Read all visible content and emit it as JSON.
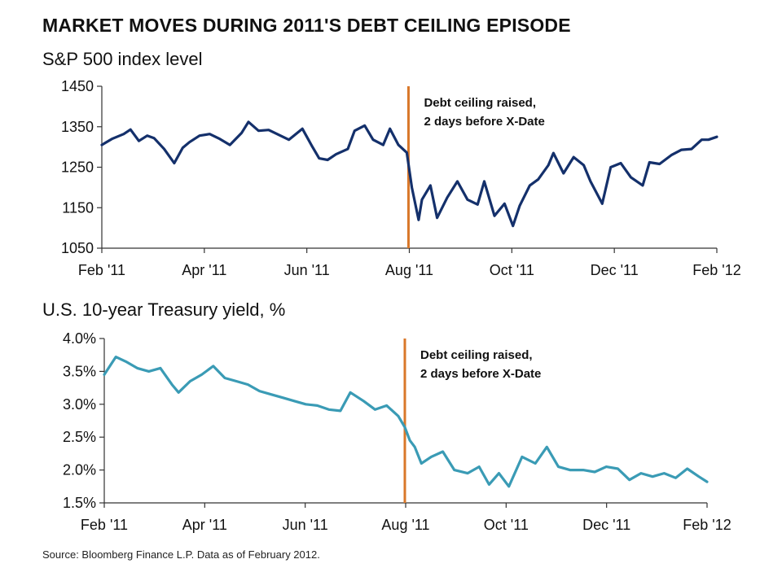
{
  "title": "MARKET MOVES DURING 2011'S DEBT CEILING EPISODE",
  "source": "Source: Bloomberg Finance L.P. Data as of February 2012.",
  "colors": {
    "sp500": "#14306b",
    "treasury": "#3a9bb5",
    "marker": "#d9782a",
    "axis": "#333333"
  },
  "chart_data": [
    {
      "type": "line",
      "title": "S&P 500 index level",
      "x_ticks": [
        "Feb '11",
        "Apr '11",
        "Jun '11",
        "Aug '11",
        "Oct '11",
        "Dec '11",
        "Feb '12"
      ],
      "y_ticks": [
        "1450",
        "1350",
        "1250",
        "1150",
        "1050"
      ],
      "ylim": [
        1050,
        1450
      ],
      "xlim": [
        "2011-02-01",
        "2012-02-01"
      ],
      "grid": false,
      "annotation": {
        "date": "2011-08-02",
        "line1": "Debt ceiling raised,",
        "line2": "2 days before X-Date"
      },
      "series": [
        {
          "x": [
            "2011-02-01",
            "2011-02-07",
            "2011-02-14",
            "2011-02-18",
            "2011-02-23",
            "2011-02-28",
            "2011-03-04",
            "2011-03-10",
            "2011-03-16",
            "2011-03-21",
            "2011-03-25",
            "2011-03-31",
            "2011-04-06",
            "2011-04-12",
            "2011-04-18",
            "2011-04-25",
            "2011-04-29",
            "2011-05-05",
            "2011-05-11",
            "2011-05-17",
            "2011-05-23",
            "2011-05-31",
            "2011-06-06",
            "2011-06-10",
            "2011-06-15",
            "2011-06-20",
            "2011-06-27",
            "2011-07-01",
            "2011-07-07",
            "2011-07-12",
            "2011-07-18",
            "2011-07-22",
            "2011-07-27",
            "2011-08-01",
            "2011-08-04",
            "2011-08-08",
            "2011-08-10",
            "2011-08-15",
            "2011-08-19",
            "2011-08-25",
            "2011-08-31",
            "2011-09-06",
            "2011-09-12",
            "2011-09-16",
            "2011-09-22",
            "2011-09-28",
            "2011-10-03",
            "2011-10-07",
            "2011-10-13",
            "2011-10-18",
            "2011-10-24",
            "2011-10-27",
            "2011-11-02",
            "2011-11-08",
            "2011-11-14",
            "2011-11-18",
            "2011-11-25",
            "2011-11-30",
            "2011-12-06",
            "2011-12-12",
            "2011-12-19",
            "2011-12-23",
            "2011-12-29",
            "2012-01-05",
            "2012-01-11",
            "2012-01-17",
            "2012-01-23",
            "2012-01-27",
            "2012-02-01"
          ],
          "values": [
            1305,
            1320,
            1332,
            1343,
            1315,
            1328,
            1322,
            1295,
            1260,
            1298,
            1312,
            1328,
            1332,
            1320,
            1305,
            1335,
            1362,
            1340,
            1342,
            1330,
            1318,
            1345,
            1300,
            1272,
            1268,
            1282,
            1295,
            1340,
            1353,
            1318,
            1305,
            1345,
            1305,
            1286,
            1200,
            1120,
            1170,
            1205,
            1125,
            1175,
            1215,
            1170,
            1158,
            1215,
            1130,
            1160,
            1105,
            1155,
            1205,
            1220,
            1255,
            1285,
            1235,
            1275,
            1255,
            1215,
            1160,
            1250,
            1260,
            1225,
            1205,
            1262,
            1258,
            1280,
            1293,
            1295,
            1318,
            1318,
            1325
          ]
        }
      ]
    },
    {
      "type": "line",
      "title": "U.S. 10-year Treasury yield, %",
      "x_ticks": [
        "Feb '11",
        "Apr '11",
        "Jun '11",
        "Aug '11",
        "Oct '11",
        "Dec '11",
        "Feb '12"
      ],
      "y_ticks": [
        "4.0%",
        "3.5%",
        "3.0%",
        "2.5%",
        "2.0%",
        "1.5%"
      ],
      "ylim": [
        1.5,
        4.0
      ],
      "xlim": [
        "2011-02-01",
        "2012-02-01"
      ],
      "grid": false,
      "annotation": {
        "date": "2011-08-02",
        "line1": "Debt ceiling raised,",
        "line2": "2 days before X-Date"
      },
      "series": [
        {
          "x": [
            "2011-02-01",
            "2011-02-08",
            "2011-02-14",
            "2011-02-21",
            "2011-02-28",
            "2011-03-07",
            "2011-03-14",
            "2011-03-18",
            "2011-03-25",
            "2011-04-01",
            "2011-04-08",
            "2011-04-15",
            "2011-04-22",
            "2011-04-29",
            "2011-05-06",
            "2011-05-13",
            "2011-05-20",
            "2011-05-27",
            "2011-06-03",
            "2011-06-10",
            "2011-06-17",
            "2011-06-24",
            "2011-06-30",
            "2011-07-08",
            "2011-07-15",
            "2011-07-22",
            "2011-07-29",
            "2011-08-02",
            "2011-08-05",
            "2011-08-08",
            "2011-08-12",
            "2011-08-18",
            "2011-08-25",
            "2011-09-01",
            "2011-09-09",
            "2011-09-16",
            "2011-09-22",
            "2011-09-28",
            "2011-10-04",
            "2011-10-12",
            "2011-10-20",
            "2011-10-27",
            "2011-11-03",
            "2011-11-10",
            "2011-11-18",
            "2011-11-25",
            "2011-12-02",
            "2011-12-09",
            "2011-12-16",
            "2011-12-23",
            "2011-12-30",
            "2012-01-06",
            "2012-01-13",
            "2012-01-20",
            "2012-01-27",
            "2012-02-01"
          ],
          "values": [
            3.45,
            3.72,
            3.65,
            3.55,
            3.5,
            3.55,
            3.3,
            3.18,
            3.35,
            3.45,
            3.58,
            3.4,
            3.35,
            3.3,
            3.2,
            3.15,
            3.1,
            3.05,
            3.0,
            2.98,
            2.92,
            2.9,
            3.18,
            3.05,
            2.92,
            2.98,
            2.82,
            2.65,
            2.45,
            2.35,
            2.1,
            2.2,
            2.28,
            2.0,
            1.95,
            2.05,
            1.78,
            1.95,
            1.75,
            2.2,
            2.1,
            2.35,
            2.05,
            2.0,
            2.0,
            1.97,
            2.05,
            2.02,
            1.85,
            1.95,
            1.9,
            1.95,
            1.88,
            2.02,
            1.9,
            1.82
          ]
        }
      ]
    }
  ]
}
